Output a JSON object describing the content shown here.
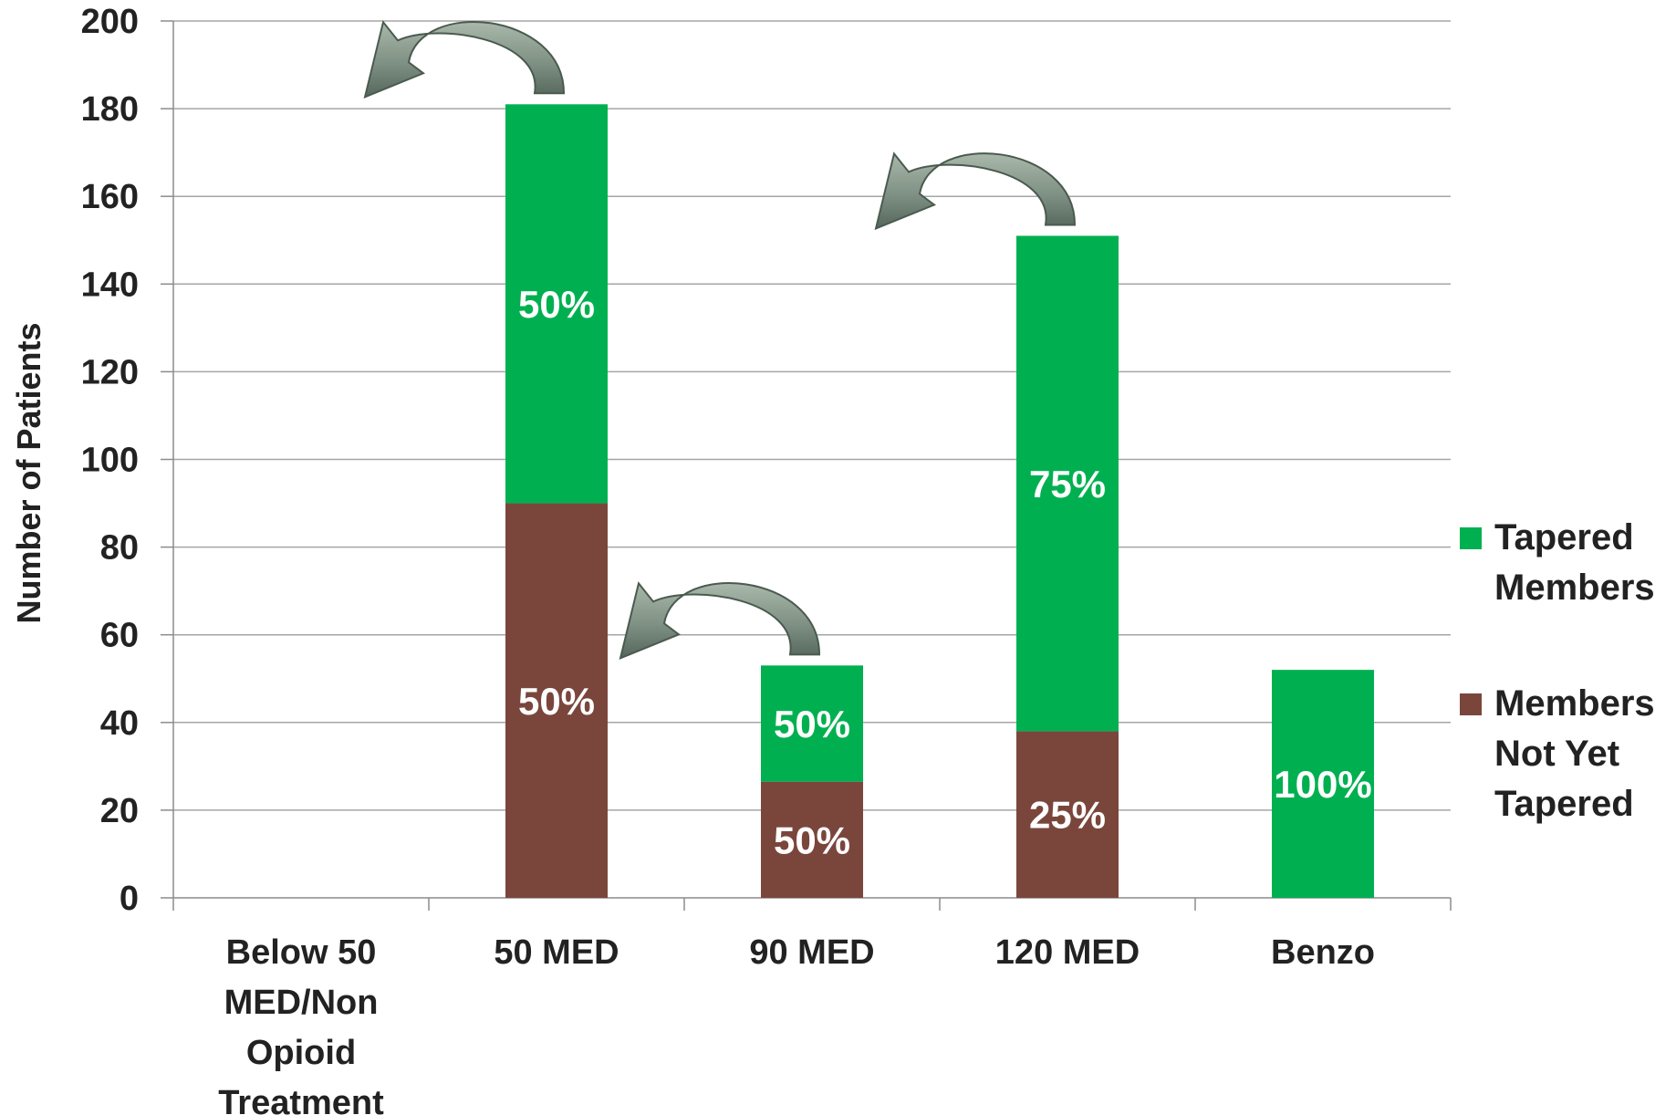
{
  "chart_data": {
    "type": "bar",
    "stacked": true,
    "categories": [
      [
        "Below 50",
        "MED/Non",
        "Opioid",
        "Treatment"
      ],
      [
        "50 MED"
      ],
      [
        "90 MED"
      ],
      [
        "120 MED"
      ],
      [
        "Benzo"
      ]
    ],
    "series": [
      {
        "name": [
          "Members",
          "Not Yet",
          "Tapered"
        ],
        "color": "#7a463c",
        "values": [
          0,
          90,
          26.5,
          38,
          0
        ],
        "labels": [
          "",
          "50%",
          "50%",
          "25%",
          ""
        ]
      },
      {
        "name": [
          "Tapered",
          "Members"
        ],
        "color": "#00b050",
        "values": [
          0,
          91,
          26.5,
          113,
          52
        ],
        "labels": [
          "",
          "50%",
          "50%",
          "75%",
          "100%"
        ]
      }
    ],
    "ylabel": "Number of Patients",
    "ylim": [
      0,
      200
    ],
    "yticks": [
      0,
      20,
      40,
      60,
      80,
      100,
      120,
      140,
      160,
      180,
      200
    ],
    "grid": true,
    "legend_position": "right",
    "legend_order": [
      1,
      0
    ],
    "arrows": [
      {
        "category_index": 1
      },
      {
        "category_index": 2
      },
      {
        "category_index": 3
      }
    ]
  }
}
